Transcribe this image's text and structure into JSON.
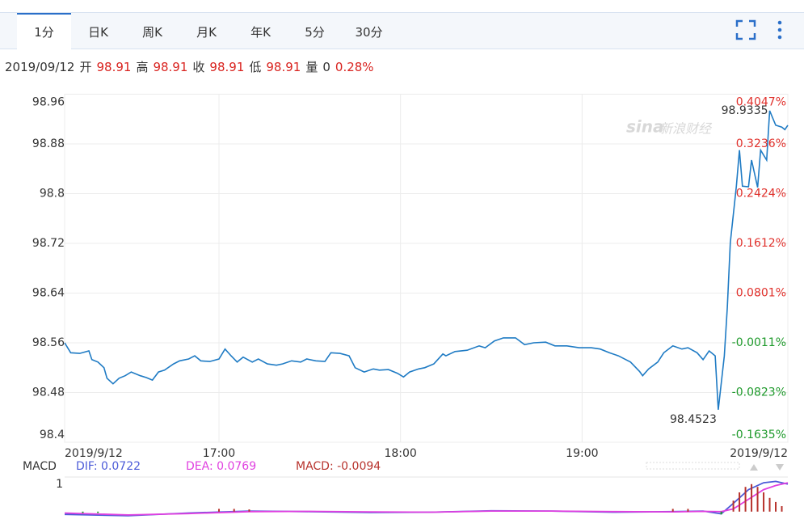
{
  "tabs": [
    "1分",
    "日K",
    "周K",
    "月K",
    "年K",
    "5分",
    "30分"
  ],
  "active_tab": 0,
  "quote": {
    "date": "2019/09/12",
    "items": [
      {
        "label": "开",
        "value": 98.91
      },
      {
        "label": "高",
        "value": 98.91
      },
      {
        "label": "收",
        "value": 98.91
      },
      {
        "label": "低",
        "value": 98.91
      },
      {
        "label": "量",
        "value": 0
      }
    ],
    "change": "0.28%"
  },
  "chart_data": [
    {
      "type": "line",
      "color": "#1f7bc4",
      "up_color": "#e0302b",
      "down_color": "#1f9a2c",
      "grid": true,
      "watermark": {
        "logo": "sina",
        "text": "新浪财经"
      },
      "xlim": [
        969,
        1208
      ],
      "xticks": [
        {
          "value": 969,
          "label": "2019/9/12"
        },
        {
          "value": 1020,
          "label": "17:00"
        },
        {
          "value": 1080,
          "label": "18:00"
        },
        {
          "value": 1140,
          "label": "19:00"
        },
        {
          "value": 1208,
          "label": "2019/9/12"
        }
      ],
      "ylim": [
        98.4,
        98.96
      ],
      "yticks": [
        98.4,
        98.48,
        98.56,
        98.64,
        98.72,
        98.8,
        98.88,
        98.96
      ],
      "y2lim": [
        -0.1635,
        0.4047
      ],
      "y2ticks": [
        {
          "value": -0.1635,
          "label": "-0.1635%"
        },
        {
          "value": -0.0823,
          "label": "-0.0823%"
        },
        {
          "value": -0.0011,
          "label": "-0.0011%"
        },
        {
          "value": 0.0801,
          "label": "0.0801%"
        },
        {
          "value": 0.1612,
          "label": "0.1612%"
        },
        {
          "value": 0.2424,
          "label": "0.2424%"
        },
        {
          "value": 0.3236,
          "label": "0.3236%"
        },
        {
          "value": 0.4047,
          "label": "0.4047%"
        }
      ],
      "high_label": 98.9335,
      "low_label": 98.4523,
      "x": [
        969,
        971,
        974,
        977,
        978,
        980,
        982,
        983,
        985,
        987,
        989,
        991,
        994,
        996,
        998,
        1000,
        1002,
        1005,
        1007,
        1010,
        1012,
        1014,
        1017,
        1020,
        1022,
        1024,
        1026,
        1028,
        1031,
        1033,
        1036,
        1039,
        1041,
        1044,
        1047,
        1049,
        1052,
        1055,
        1057,
        1060,
        1063,
        1065,
        1068,
        1071,
        1073,
        1076,
        1079,
        1081,
        1083,
        1086,
        1088,
        1091,
        1094,
        1095,
        1098,
        1102,
        1106,
        1108,
        1111,
        1114,
        1118,
        1121,
        1124,
        1128,
        1131,
        1135,
        1139,
        1143,
        1146,
        1149,
        1152,
        1156,
        1159,
        1160,
        1162,
        1165,
        1167,
        1170,
        1173,
        1175,
        1178,
        1180,
        1182,
        1184,
        1185,
        1187,
        1188,
        1189,
        1191,
        1192,
        1193,
        1195,
        1196,
        1198,
        1199,
        1201,
        1202,
        1204,
        1206,
        1207,
        1208
      ],
      "values": [
        98.56,
        98.544,
        98.543,
        98.547,
        98.533,
        98.529,
        98.52,
        98.503,
        98.494,
        98.503,
        98.507,
        98.513,
        98.507,
        98.504,
        98.5,
        98.513,
        98.516,
        98.526,
        98.531,
        98.534,
        98.539,
        98.531,
        98.53,
        98.534,
        98.55,
        98.539,
        98.529,
        98.537,
        98.529,
        98.534,
        98.526,
        98.524,
        98.526,
        98.531,
        98.529,
        98.534,
        98.531,
        98.53,
        98.544,
        98.543,
        98.539,
        98.52,
        98.513,
        98.518,
        98.516,
        98.517,
        98.511,
        98.505,
        98.513,
        98.518,
        98.52,
        98.526,
        98.542,
        98.539,
        98.546,
        98.548,
        98.555,
        98.552,
        98.563,
        98.568,
        98.568,
        98.557,
        98.56,
        98.561,
        98.555,
        98.555,
        98.552,
        98.552,
        98.55,
        98.544,
        98.539,
        98.529,
        98.514,
        98.507,
        98.518,
        98.529,
        98.544,
        98.555,
        98.55,
        98.552,
        98.544,
        98.533,
        98.547,
        98.539,
        98.4523,
        98.539,
        98.617,
        98.721,
        98.812,
        98.87,
        98.812,
        98.811,
        98.854,
        98.81,
        98.87,
        98.854,
        98.9335,
        98.91,
        98.907,
        98.903,
        98.91
      ]
    },
    {
      "type": "macd",
      "title": "MACD",
      "up_color": "#b7322c",
      "down_color": "#1f9a2c",
      "xlim": [
        969,
        1208
      ],
      "ylim": [
        -0.3,
        1.2
      ],
      "yticks": [
        1
      ],
      "series": [
        {
          "name": "DIF: 0.0722",
          "color": "#4c5bd8",
          "kind": "line",
          "x": [
            969,
            990,
            1010,
            1030,
            1050,
            1070,
            1090,
            1110,
            1130,
            1150,
            1170,
            1180,
            1186,
            1190,
            1195,
            1200,
            1204,
            1208
          ],
          "values": [
            -0.1,
            -0.15,
            -0.05,
            0.02,
            0,
            -0.03,
            -0.02,
            0.03,
            0.02,
            -0.02,
            0,
            0.02,
            -0.08,
            0.3,
            0.8,
            1.05,
            1.1,
            1.0
          ]
        },
        {
          "name": "DEA: 0.0769",
          "color": "#e040e0",
          "kind": "line",
          "x": [
            969,
            990,
            1010,
            1030,
            1050,
            1070,
            1090,
            1110,
            1130,
            1150,
            1170,
            1180,
            1186,
            1190,
            1195,
            1200,
            1204,
            1208
          ],
          "values": [
            -0.05,
            -0.12,
            -0.07,
            0,
            0.01,
            -0.01,
            -0.02,
            0.02,
            0.02,
            0,
            -0.01,
            0.01,
            0,
            0.1,
            0.45,
            0.8,
            0.95,
            1.05
          ]
        },
        {
          "name": "MACD: -0.0094",
          "color": "#b7322c",
          "kind": "bar",
          "x": [
            975,
            980,
            1020,
            1025,
            1030,
            1170,
            1175,
            1186,
            1190,
            1192,
            1194,
            1196,
            1198,
            1200,
            1202,
            1204,
            1206
          ],
          "values": [
            -0.05,
            -0.05,
            0.1,
            0.1,
            0.08,
            0.1,
            0.1,
            -0.1,
            0.4,
            0.7,
            0.9,
            1.0,
            0.9,
            0.7,
            0.5,
            0.35,
            0.2
          ]
        }
      ]
    }
  ]
}
